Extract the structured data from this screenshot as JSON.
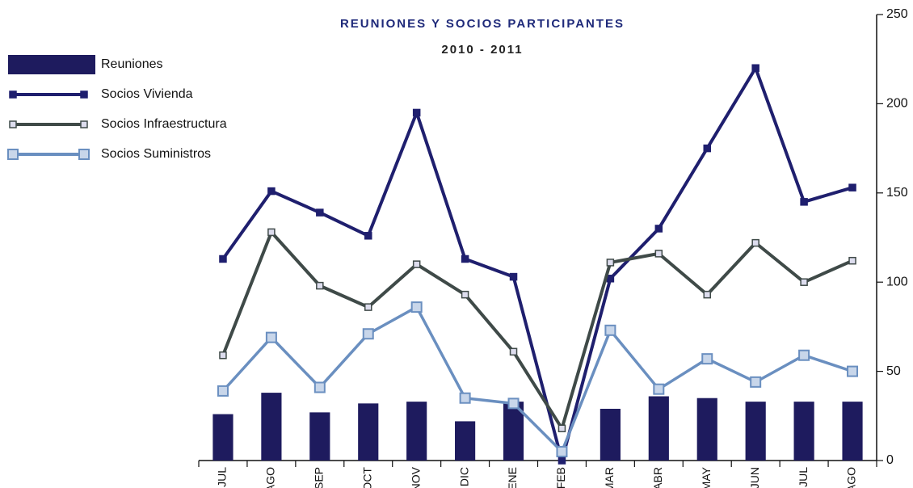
{
  "chart_data": {
    "type": "bar",
    "title": "REUNIONES Y SOCIOS PARTICIPANTES",
    "subtitle": "2010 - 2011",
    "categories": [
      "JUL",
      "AGO",
      "SEP",
      "OCT",
      "NOV",
      "DIC",
      "ENE",
      "FEB",
      "MAR",
      "ABR",
      "MAY",
      "JUN",
      "JUL",
      "AGO"
    ],
    "series": [
      {
        "name": "Reuniones",
        "type": "bar",
        "color": "#1e1b5e",
        "values": [
          26,
          38,
          27,
          32,
          33,
          22,
          33,
          0,
          29,
          36,
          35,
          33,
          33,
          33
        ]
      },
      {
        "name": "Socios Vivienda",
        "type": "line",
        "color": "#1f1f6e",
        "values": [
          113,
          151,
          139,
          126,
          195,
          113,
          103,
          0,
          102,
          130,
          175,
          220,
          145,
          153
        ]
      },
      {
        "name": "Socios Infraestructura",
        "type": "line",
        "color": "#3f4a48",
        "values": [
          59,
          128,
          98,
          86,
          110,
          93,
          61,
          18,
          111,
          116,
          93,
          122,
          100,
          112
        ]
      },
      {
        "name": "Socios Suministros",
        "type": "line",
        "color": "#6a8fc0",
        "values": [
          39,
          69,
          41,
          71,
          86,
          35,
          32,
          5,
          73,
          40,
          57,
          44,
          59,
          50
        ]
      }
    ],
    "ylim": [
      0,
      250
    ],
    "yticks": [
      0,
      50,
      100,
      150,
      200,
      250
    ],
    "y_axis_side": "right",
    "legend": "upper left",
    "grid": false
  }
}
